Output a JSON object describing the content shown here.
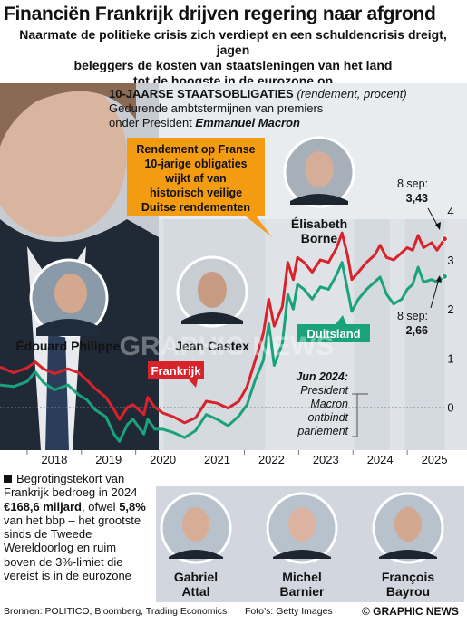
{
  "header": {
    "title": "Financiën Frankrijk drijven regering naar afgrond",
    "subtitle_lines": [
      "Naarmate de politieke crisis zich verdiept en een schuldencrisis dreigt, jagen",
      "beleggers de kosten van staatsleningen van het land",
      "tot de hoogste in de eurozone op"
    ]
  },
  "chart_data": {
    "type": "line",
    "title": "10-JAARSE STAATSOBLIGATIES",
    "title_note": "(rendement, procent)",
    "subtitle_line1": "Gedurende ambtstermijnen van premiers",
    "subtitle_prefix": "onder President",
    "subtitle_name": "Emmanuel Macron",
    "x_ticks": [
      "2018",
      "2019",
      "2020",
      "2021",
      "2022",
      "2023",
      "2024",
      "2025"
    ],
    "y_ticks": [
      0,
      1,
      2,
      3,
      4
    ],
    "ylim": [
      -0.6,
      4.2
    ],
    "xlim": [
      2017.5,
      2025.85
    ],
    "series": [
      {
        "name": "Frankrijk",
        "color": "#d8232a",
        "points": [
          [
            2017.5,
            0.82
          ],
          [
            2017.75,
            0.7
          ],
          [
            2018.0,
            0.8
          ],
          [
            2018.15,
            0.92
          ],
          [
            2018.3,
            0.78
          ],
          [
            2018.5,
            0.68
          ],
          [
            2018.75,
            0.78
          ],
          [
            2018.95,
            0.7
          ],
          [
            2019.1,
            0.55
          ],
          [
            2019.25,
            0.38
          ],
          [
            2019.45,
            0.2
          ],
          [
            2019.6,
            -0.05
          ],
          [
            2019.7,
            -0.25
          ],
          [
            2019.85,
            0.0
          ],
          [
            2019.95,
            0.05
          ],
          [
            2020.15,
            -0.15
          ],
          [
            2020.22,
            0.2
          ],
          [
            2020.35,
            0.0
          ],
          [
            2020.5,
            -0.12
          ],
          [
            2020.7,
            -0.2
          ],
          [
            2020.9,
            -0.32
          ],
          [
            2021.1,
            -0.22
          ],
          [
            2021.3,
            0.12
          ],
          [
            2021.5,
            0.08
          ],
          [
            2021.7,
            -0.02
          ],
          [
            2021.9,
            0.12
          ],
          [
            2022.05,
            0.42
          ],
          [
            2022.2,
            0.95
          ],
          [
            2022.35,
            1.5
          ],
          [
            2022.45,
            2.2
          ],
          [
            2022.55,
            1.65
          ],
          [
            2022.7,
            2.05
          ],
          [
            2022.8,
            2.95
          ],
          [
            2022.9,
            2.6
          ],
          [
            2022.98,
            3.05
          ],
          [
            2023.1,
            2.95
          ],
          [
            2023.25,
            2.75
          ],
          [
            2023.4,
            3.0
          ],
          [
            2023.55,
            2.95
          ],
          [
            2023.7,
            3.25
          ],
          [
            2023.8,
            3.55
          ],
          [
            2023.9,
            3.1
          ],
          [
            2023.98,
            2.6
          ],
          [
            2024.1,
            2.75
          ],
          [
            2024.25,
            2.95
          ],
          [
            2024.4,
            3.1
          ],
          [
            2024.5,
            3.3
          ],
          [
            2024.62,
            3.05
          ],
          [
            2024.75,
            3.0
          ],
          [
            2024.9,
            3.15
          ],
          [
            2025.0,
            3.25
          ],
          [
            2025.1,
            3.2
          ],
          [
            2025.2,
            3.5
          ],
          [
            2025.3,
            3.25
          ],
          [
            2025.45,
            3.35
          ],
          [
            2025.55,
            3.2
          ],
          [
            2025.69,
            3.43
          ]
        ]
      },
      {
        "name": "Duitsland",
        "color": "#1aa37a",
        "points": [
          [
            2017.5,
            0.45
          ],
          [
            2017.75,
            0.42
          ],
          [
            2018.0,
            0.52
          ],
          [
            2018.15,
            0.72
          ],
          [
            2018.3,
            0.5
          ],
          [
            2018.5,
            0.35
          ],
          [
            2018.75,
            0.45
          ],
          [
            2018.95,
            0.25
          ],
          [
            2019.1,
            0.15
          ],
          [
            2019.25,
            -0.05
          ],
          [
            2019.45,
            -0.2
          ],
          [
            2019.6,
            -0.55
          ],
          [
            2019.7,
            -0.7
          ],
          [
            2019.85,
            -0.35
          ],
          [
            2019.95,
            -0.25
          ],
          [
            2020.15,
            -0.55
          ],
          [
            2020.22,
            -0.25
          ],
          [
            2020.35,
            -0.45
          ],
          [
            2020.5,
            -0.45
          ],
          [
            2020.7,
            -0.52
          ],
          [
            2020.9,
            -0.62
          ],
          [
            2021.1,
            -0.48
          ],
          [
            2021.3,
            -0.15
          ],
          [
            2021.5,
            -0.25
          ],
          [
            2021.7,
            -0.38
          ],
          [
            2021.9,
            -0.18
          ],
          [
            2022.05,
            0.05
          ],
          [
            2022.2,
            0.55
          ],
          [
            2022.35,
            0.95
          ],
          [
            2022.45,
            1.7
          ],
          [
            2022.55,
            0.85
          ],
          [
            2022.7,
            1.3
          ],
          [
            2022.8,
            2.3
          ],
          [
            2022.9,
            2.0
          ],
          [
            2022.98,
            2.5
          ],
          [
            2023.1,
            2.4
          ],
          [
            2023.25,
            2.2
          ],
          [
            2023.4,
            2.45
          ],
          [
            2023.55,
            2.4
          ],
          [
            2023.7,
            2.7
          ],
          [
            2023.8,
            2.95
          ],
          [
            2023.9,
            2.4
          ],
          [
            2023.98,
            1.95
          ],
          [
            2024.1,
            2.2
          ],
          [
            2024.25,
            2.4
          ],
          [
            2024.4,
            2.55
          ],
          [
            2024.5,
            2.65
          ],
          [
            2024.62,
            2.3
          ],
          [
            2024.75,
            2.1
          ],
          [
            2024.9,
            2.2
          ],
          [
            2025.0,
            2.4
          ],
          [
            2025.1,
            2.5
          ],
          [
            2025.2,
            2.85
          ],
          [
            2025.3,
            2.55
          ],
          [
            2025.45,
            2.6
          ],
          [
            2025.55,
            2.55
          ],
          [
            2025.69,
            2.66
          ]
        ]
      }
    ],
    "bands": [
      {
        "name": "Jean Castex",
        "from": 2020.51,
        "to": 2022.38
      },
      {
        "name": "Gabriel Attal",
        "from": 2024.02,
        "to": 2024.68
      },
      {
        "name": "François Bayrou",
        "from": 2024.96,
        "to": 2025.69
      }
    ],
    "series_labels": {
      "france": "Frankrijk",
      "germany": "Duitsland"
    },
    "callout": "Rendement op Franse\n10-jarige obligaties\nwijkt af van\nhistorisch veilige\nDuitse rendementen",
    "annotation_jun2024": {
      "lead": "Jun 2024:",
      "body": "President\nMacron\nontbindt\nparlement"
    },
    "end_label_france": {
      "date": "8 sep:",
      "value": "3,43"
    },
    "end_label_germany": {
      "date": "8 sep:",
      "value": "2,66"
    }
  },
  "portraits_top": [
    {
      "name": "Édouard Philippe",
      "lines": [
        "Édouard Philippe"
      ]
    },
    {
      "name": "Jean Castex",
      "lines": [
        "Jean Castex"
      ]
    },
    {
      "name": "Élisabeth Borne",
      "lines": [
        "Élisabeth",
        "Borne"
      ]
    }
  ],
  "portraits_bottom": [
    {
      "lines": [
        "Gabriel",
        "Attal"
      ]
    },
    {
      "lines": [
        "Michel",
        "Barnier"
      ]
    },
    {
      "lines": [
        "François",
        "Bayrou"
      ]
    }
  ],
  "deficit": {
    "p1": "Begrotingstekort van Frankrijk bedroeg in 2024",
    "amount": "€168,6 miljard",
    "p2": ", ofwel",
    "pct": "5,8%",
    "p3": "van het bbp – het grootste sinds de Tweede Wereldoorlog en ruim boven de 3%-limiet die vereist is in de eurozone"
  },
  "footer": {
    "sources": "Bronnen: POLITICO, Bloomberg, Trading Economics",
    "photos": "Foto’s: Getty Images",
    "credit": "© GRAPHIC NEWS"
  },
  "watermark": "GRAPHIC NEWS",
  "colors": {
    "france": "#d8232a",
    "germany": "#1aa37a",
    "callout": "#f39c12",
    "band": "#d2d6de",
    "bg_dark": "#2a3540"
  }
}
